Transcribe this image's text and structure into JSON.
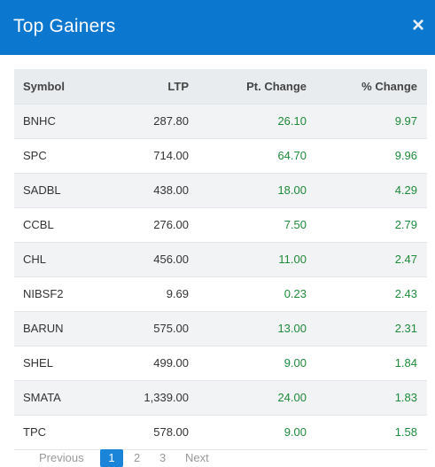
{
  "header": {
    "title": "Top Gainers",
    "close_glyph": "×",
    "close_icon": "close-icon"
  },
  "table": {
    "columns": [
      "Symbol",
      "LTP",
      "Pt. Change",
      "% Change"
    ],
    "rows": [
      [
        "BNHC",
        "287.80",
        "26.10",
        "9.97"
      ],
      [
        "SPC",
        "714.00",
        "64.70",
        "9.96"
      ],
      [
        "SADBL",
        "438.00",
        "18.00",
        "4.29"
      ],
      [
        "CCBL",
        "276.00",
        "7.50",
        "2.79"
      ],
      [
        "CHL",
        "456.00",
        "11.00",
        "2.47"
      ],
      [
        "NIBSF2",
        "9.69",
        "0.23",
        "2.43"
      ],
      [
        "BARUN",
        "575.00",
        "13.00",
        "2.31"
      ],
      [
        "SHEL",
        "499.00",
        "9.00",
        "1.84"
      ],
      [
        "SMATA",
        "1,339.00",
        "24.00",
        "1.83"
      ],
      [
        "TPC",
        "578.00",
        "9.00",
        "1.58"
      ]
    ]
  },
  "pager": {
    "prev": "Previous",
    "pages": [
      "1",
      "2",
      "3"
    ],
    "next": "Next"
  },
  "colors": {
    "header_bg": "#0b77cf",
    "positive": "#1f8a3a",
    "active_page": "#1a84d8"
  }
}
